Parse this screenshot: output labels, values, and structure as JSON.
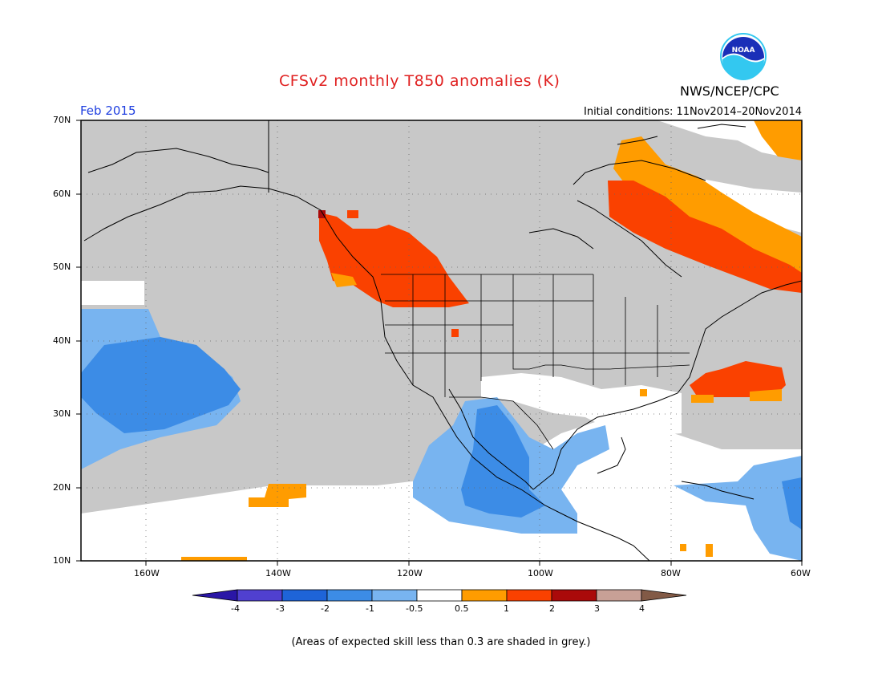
{
  "title": "CFSv2 monthly T850 anomalies (K)",
  "month_label": "Feb 2015",
  "initial_conditions": "Initial conditions: 11Nov2014–20Nov2014",
  "agency": "NWS/NCEP/CPC",
  "logo_text": "NOAA",
  "footnote": "(Areas of expected skill less than 0.3 are shaded in grey.)",
  "lat_labels": [
    "70N",
    "60N",
    "50N",
    "40N",
    "30N",
    "20N",
    "10N"
  ],
  "lon_labels": [
    "160W",
    "140W",
    "120W",
    "100W",
    "80W",
    "60W"
  ],
  "colorbar": {
    "ticks": [
      "-4",
      "-3",
      "-2",
      "-1",
      "-0.5",
      "0.5",
      "1",
      "2",
      "3",
      "4"
    ],
    "colors": [
      "#2a16a6",
      "#5040d0",
      "#1e64d8",
      "#3c8ce6",
      "#78b4f0",
      "#ffffff",
      "#ff9c00",
      "#fa4100",
      "#aa0a0a",
      "#c8a096",
      "#825a46"
    ]
  },
  "colors": {
    "grey_low_skill": "#c8c8c8",
    "title": "#e02020",
    "month": "#2040e0"
  }
}
